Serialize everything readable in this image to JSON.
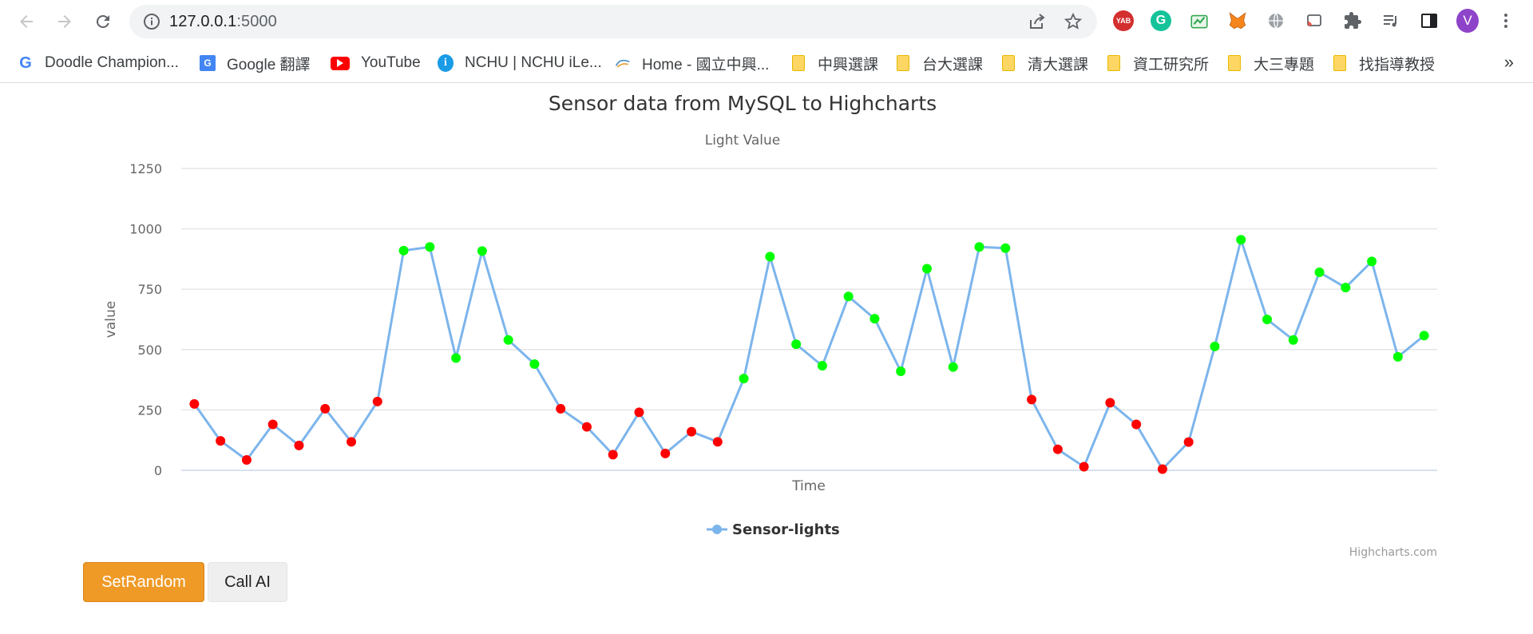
{
  "browser": {
    "url_host": "127.0.0.1",
    "url_port": ":5000",
    "profile_initial": "V",
    "extension_badge": "YAB",
    "bookmarks": [
      {
        "label": "Doodle Champion...",
        "icon": "google-icon"
      },
      {
        "label": "Google 翻譯",
        "icon": "google-translate-icon"
      },
      {
        "label": "YouTube",
        "icon": "youtube-icon"
      },
      {
        "label": "NCHU | NCHU iLe...",
        "icon": "info-icon"
      },
      {
        "label": "Home - 國立中興...",
        "icon": "site-icon"
      },
      {
        "label": "中興選課",
        "icon": "folder-icon"
      },
      {
        "label": "台大選課",
        "icon": "folder-icon"
      },
      {
        "label": "清大選課",
        "icon": "folder-icon"
      },
      {
        "label": "資工研究所",
        "icon": "folder-icon"
      },
      {
        "label": "大三專題",
        "icon": "folder-icon"
      },
      {
        "label": "找指導教授",
        "icon": "folder-icon"
      }
    ],
    "more_bookmarks": "»"
  },
  "buttons": {
    "set_random": "SetRandom",
    "call_ai": "Call AI"
  },
  "chart_data": {
    "type": "line",
    "title": "Sensor data from MySQL to Highcharts",
    "subtitle": "Light Value",
    "xlabel": "Time",
    "ylabel": "value",
    "ylim": [
      0,
      1250
    ],
    "yticks": [
      0,
      250,
      500,
      750,
      1000,
      1250
    ],
    "grid": true,
    "legend": "bottom-center",
    "credits": "Highcharts.com",
    "colors": {
      "line": "#7cb5ec",
      "low": "#ff0000",
      "high": "#00ff00"
    },
    "series": [
      {
        "name": "Sensor-lights",
        "values": [
          275,
          122,
          43,
          190,
          103,
          255,
          118,
          285,
          910,
          925,
          465,
          908,
          540,
          440,
          255,
          180,
          65,
          240,
          70,
          160,
          118,
          380,
          885,
          522,
          433,
          720,
          628,
          410,
          835,
          428,
          925,
          920,
          293,
          87,
          15,
          280,
          190,
          5,
          117,
          513,
          955,
          625,
          540,
          820,
          757,
          865,
          470,
          558
        ]
      }
    ],
    "threshold": 300
  }
}
